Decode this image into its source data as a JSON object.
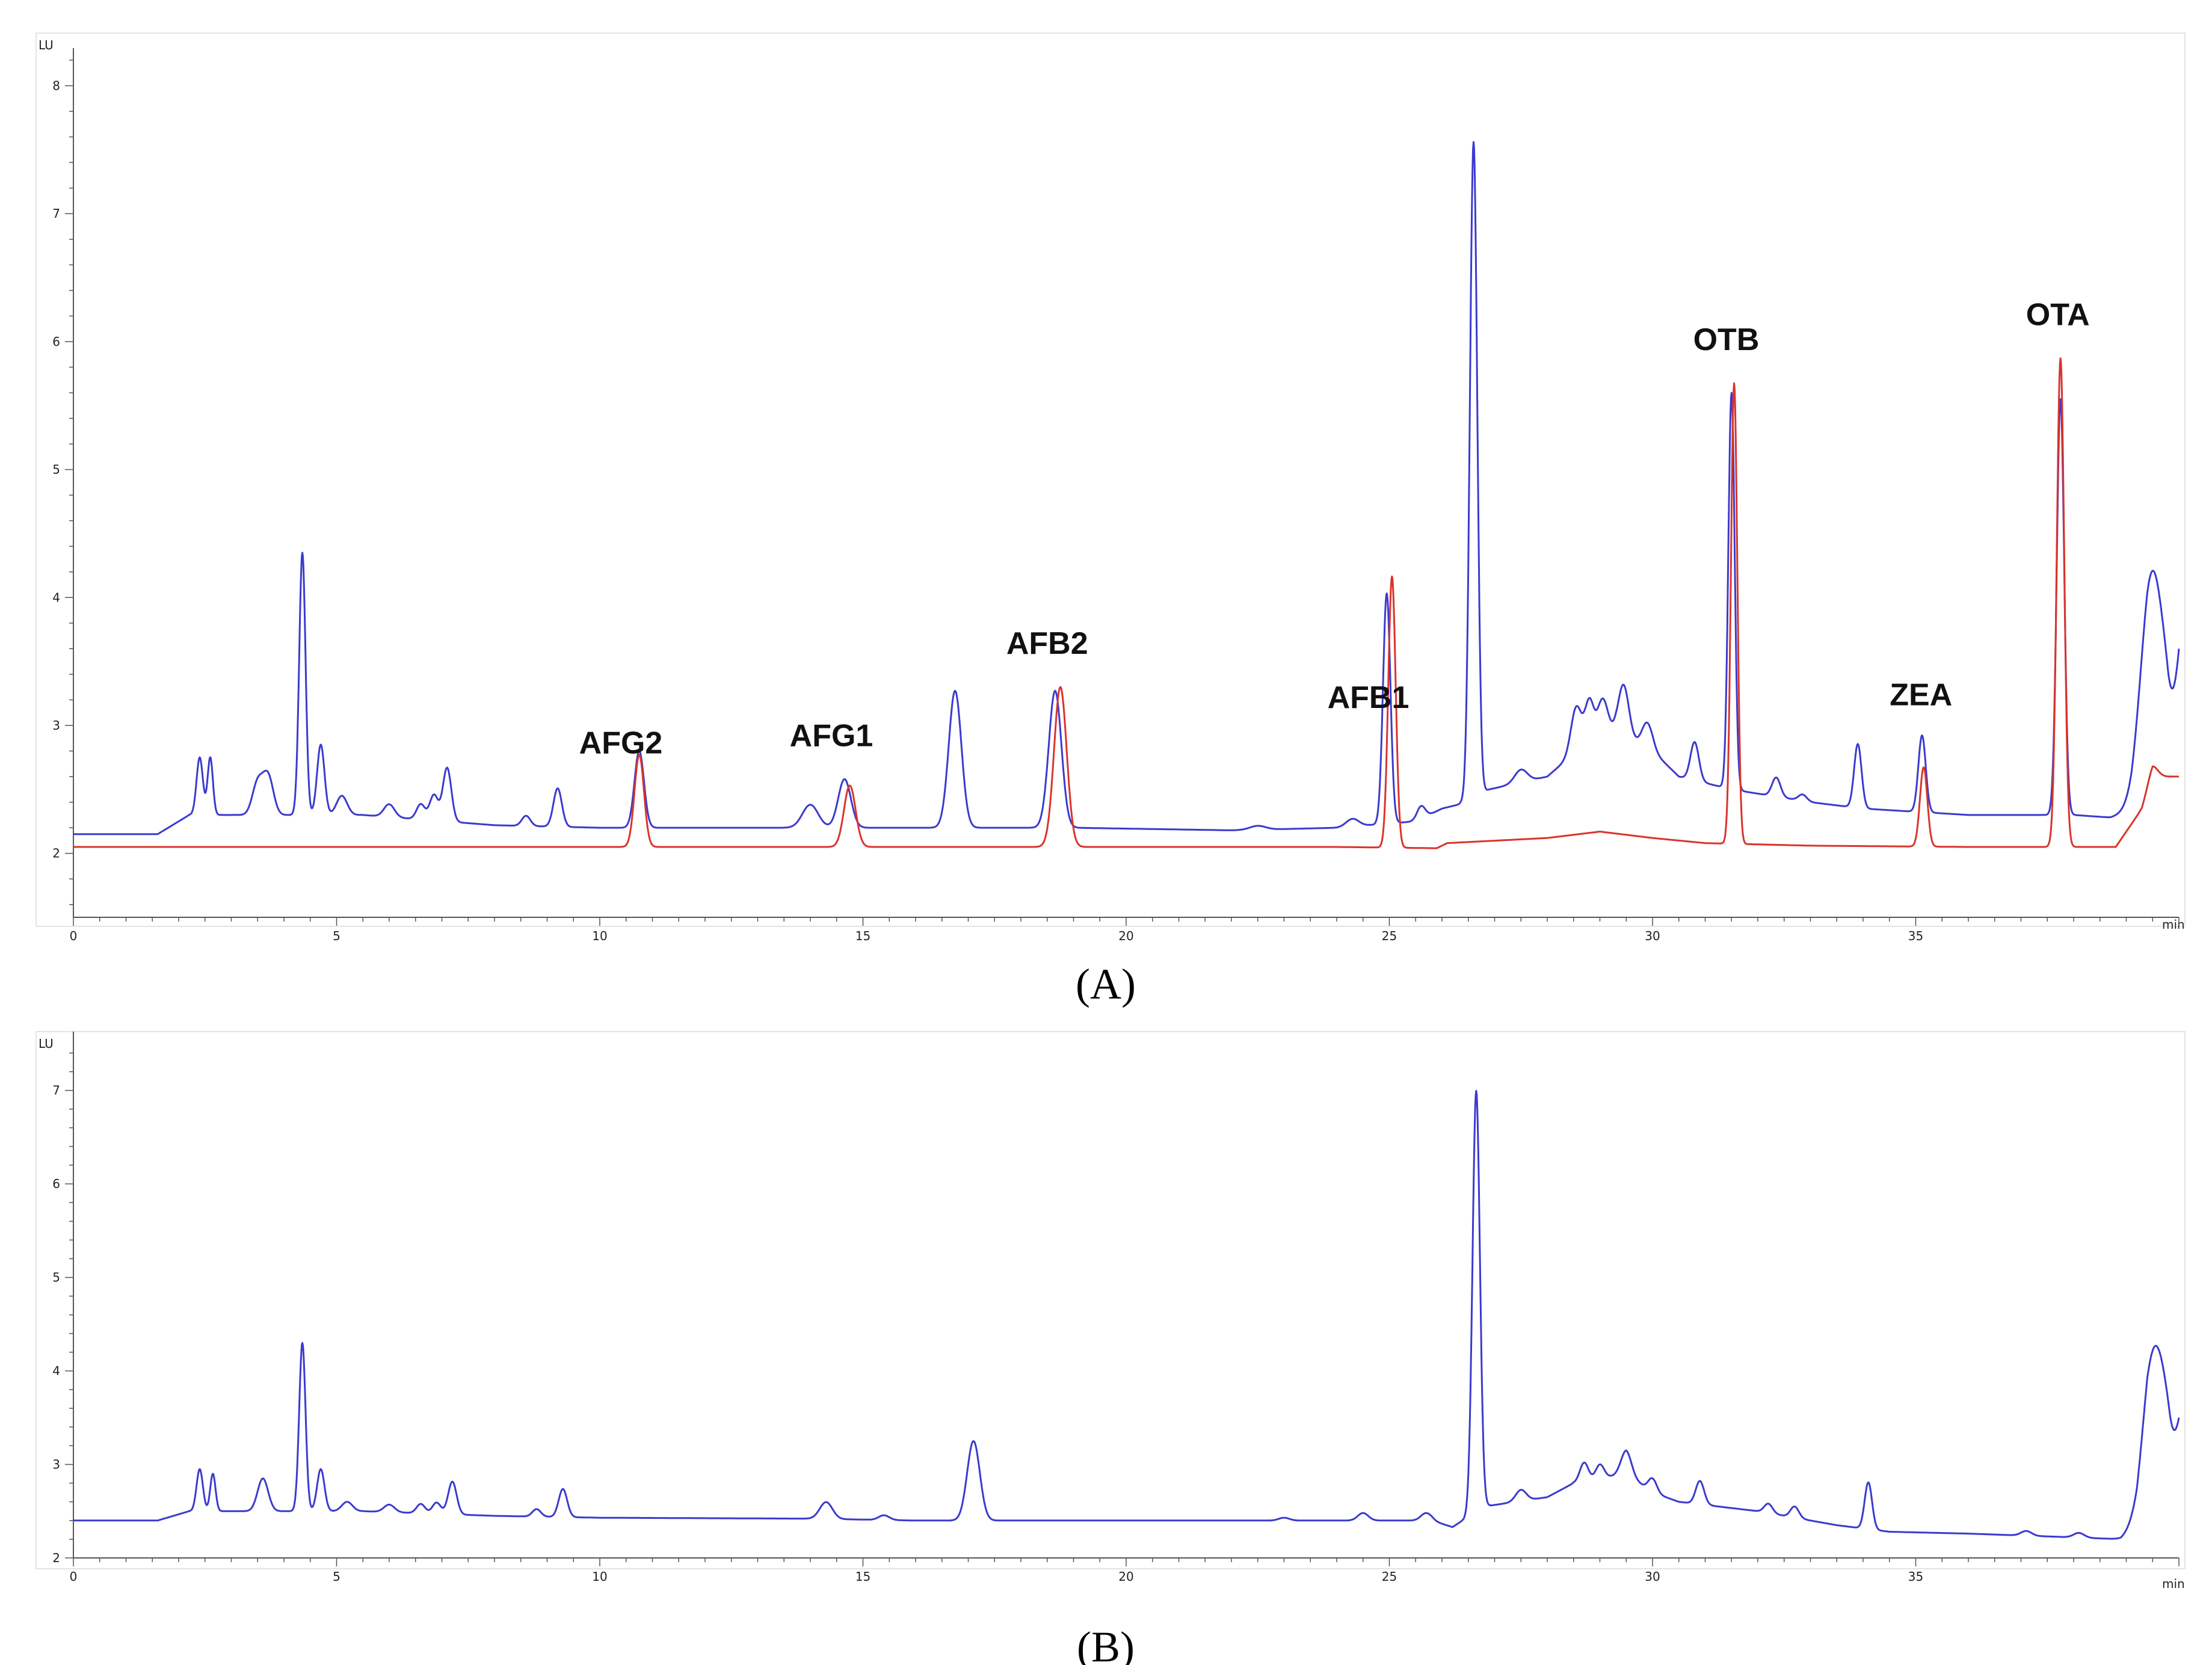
{
  "colors": {
    "sample_trace": "#3a3acf",
    "standard_trace": "#d9342b",
    "axis": "#555555",
    "panel_border": "#dddddd"
  },
  "chart_data": [
    {
      "type": "line",
      "panel_label": "(A)",
      "y_unit": "LU",
      "x_unit": "min",
      "xlim": [
        0,
        40
      ],
      "ylim": [
        1.5,
        8.2
      ],
      "x_ticks": [
        "0",
        "5",
        "10",
        "15",
        "20",
        "25",
        "30",
        "35"
      ],
      "y_ticks": [
        "2",
        "3",
        "4",
        "5",
        "6",
        "7",
        "8"
      ],
      "grid": false,
      "series": [
        {
          "color": "#3a3acf",
          "baseline": [
            [
              0,
              2.15
            ],
            [
              1.6,
              2.15
            ],
            [
              2.2,
              2.3
            ],
            [
              3.5,
              2.3
            ],
            [
              5.5,
              2.3
            ],
            [
              8,
              2.22
            ],
            [
              10,
              2.2
            ],
            [
              13,
              2.2
            ],
            [
              16,
              2.2
            ],
            [
              19,
              2.2
            ],
            [
              22,
              2.18
            ],
            [
              24,
              2.2
            ],
            [
              25.5,
              2.25
            ],
            [
              26,
              2.35
            ],
            [
              26.3,
              2.38
            ],
            [
              26.9,
              2.5
            ],
            [
              28,
              2.6
            ],
            [
              28.7,
              2.85
            ],
            [
              29.3,
              2.95
            ],
            [
              30,
              2.8
            ],
            [
              30.5,
              2.6
            ],
            [
              31.5,
              2.5
            ],
            [
              33,
              2.4
            ],
            [
              34,
              2.35
            ],
            [
              36,
              2.3
            ],
            [
              38,
              2.3
            ],
            [
              38.7,
              2.28
            ],
            [
              39.1,
              2.32
            ],
            [
              39.4,
              2.55
            ]
          ],
          "peaks": [
            [
              2.4,
              0.45,
              0.06
            ],
            [
              2.6,
              0.45,
              0.05
            ],
            [
              3.5,
              0.25,
              0.1
            ],
            [
              3.7,
              0.3,
              0.1
            ],
            [
              4.35,
              2.05,
              0.06
            ],
            [
              4.7,
              0.55,
              0.07
            ],
            [
              5.1,
              0.15,
              0.1
            ],
            [
              6,
              0.1,
              0.1
            ],
            [
              6.6,
              0.12,
              0.08
            ],
            [
              6.85,
              0.2,
              0.08
            ],
            [
              7.1,
              0.42,
              0.08
            ],
            [
              8.6,
              0.08,
              0.08
            ],
            [
              9.2,
              0.3,
              0.08
            ],
            [
              10.75,
              0.6,
              0.09
            ],
            [
              14,
              0.18,
              0.15
            ],
            [
              14.65,
              0.38,
              0.12
            ],
            [
              16.75,
              1.07,
              0.12
            ],
            [
              18.65,
              1.07,
              0.12
            ],
            [
              22.5,
              0.03,
              0.15
            ],
            [
              24.3,
              0.06,
              0.12
            ],
            [
              24.95,
              1.8,
              0.07
            ],
            [
              25.6,
              0.1,
              0.08
            ],
            [
              26.6,
              5.12,
              0.07
            ],
            [
              27.5,
              0.1,
              0.12
            ],
            [
              28.55,
              0.35,
              0.1
            ],
            [
              28.8,
              0.32,
              0.08
            ],
            [
              29.05,
              0.3,
              0.1
            ],
            [
              29.45,
              0.4,
              0.1
            ],
            [
              29.9,
              0.2,
              0.1
            ],
            [
              30.8,
              0.3,
              0.08
            ],
            [
              31.5,
              3.1,
              0.06
            ],
            [
              32.35,
              0.15,
              0.08
            ],
            [
              32.85,
              0.05,
              0.08
            ],
            [
              33.9,
              0.5,
              0.07
            ],
            [
              35.12,
              0.6,
              0.07
            ],
            [
              37.75,
              3.25,
              0.07
            ],
            [
              39.5,
              1.65,
              0.22
            ],
            [
              39.8,
              0.2,
              0.12
            ]
          ],
          "end_value": 3.6
        },
        {
          "color": "#d9342b",
          "baseline": [
            [
              0,
              2.05
            ],
            [
              10,
              2.05
            ],
            [
              16,
              2.05
            ],
            [
              20,
              2.05
            ],
            [
              24,
              2.05
            ],
            [
              25.9,
              2.04
            ],
            [
              26.1,
              2.08
            ],
            [
              28,
              2.12
            ],
            [
              29,
              2.17
            ],
            [
              30,
              2.12
            ],
            [
              31,
              2.08
            ],
            [
              33,
              2.06
            ],
            [
              36,
              2.05
            ],
            [
              38.8,
              2.05
            ],
            [
              39.3,
              2.35
            ],
            [
              39.5,
              2.6
            ],
            [
              40,
              2.6
            ]
          ],
          "peaks": [
            [
              10.75,
              0.72,
              0.09
            ],
            [
              14.75,
              0.48,
              0.11
            ],
            [
              18.75,
              1.25,
              0.12
            ],
            [
              25.05,
              2.12,
              0.07
            ],
            [
              31.55,
              3.6,
              0.06
            ],
            [
              35.15,
              0.62,
              0.07
            ],
            [
              37.75,
              3.82,
              0.07
            ],
            [
              39.5,
              0.08,
              0.1
            ]
          ]
        }
      ],
      "annotations": [
        {
          "label": "AFG2",
          "x": 10.4
        },
        {
          "label": "AFG1",
          "x": 14.4
        },
        {
          "label": "AFB2",
          "x": 18.5
        },
        {
          "label": "AFB1",
          "x": 24.6
        },
        {
          "label": "OTB",
          "x": 31.4
        },
        {
          "label": "ZEA",
          "x": 35.1
        },
        {
          "label": "OTA",
          "x": 37.7
        }
      ]
    },
    {
      "type": "line",
      "panel_label": "(B)",
      "y_unit": "LU",
      "x_unit": "min",
      "xlim": [
        0,
        40
      ],
      "ylim": [
        2,
        7.5
      ],
      "x_ticks": [
        "0",
        "5",
        "10",
        "15",
        "20",
        "25",
        "30",
        "35"
      ],
      "y_ticks": [
        "2",
        "3",
        "4",
        "5",
        "6",
        "7"
      ],
      "grid": false,
      "series": [
        {
          "color": "#3a3acf",
          "baseline": [
            [
              0,
              2.4
            ],
            [
              1.6,
              2.4
            ],
            [
              2.2,
              2.5
            ],
            [
              5.5,
              2.5
            ],
            [
              8,
              2.45
            ],
            [
              10,
              2.43
            ],
            [
              14,
              2.42
            ],
            [
              16,
              2.4
            ],
            [
              20,
              2.4
            ],
            [
              24,
              2.4
            ],
            [
              25.8,
              2.4
            ],
            [
              26.2,
              2.33
            ],
            [
              26.8,
              2.55
            ],
            [
              28,
              2.65
            ],
            [
              28.5,
              2.8
            ],
            [
              29.5,
              2.9
            ],
            [
              30,
              2.7
            ],
            [
              30.5,
              2.6
            ],
            [
              32,
              2.5
            ],
            [
              33.5,
              2.35
            ],
            [
              34.5,
              2.28
            ],
            [
              36,
              2.26
            ],
            [
              38,
              2.22
            ],
            [
              38.9,
              2.2
            ],
            [
              39.2,
              2.3
            ],
            [
              39.4,
              2.7
            ]
          ],
          "peaks": [
            [
              2.4,
              0.45,
              0.06
            ],
            [
              2.65,
              0.4,
              0.05
            ],
            [
              3.6,
              0.35,
              0.1
            ],
            [
              4.35,
              1.8,
              0.06
            ],
            [
              4.7,
              0.45,
              0.07
            ],
            [
              5.2,
              0.1,
              0.1
            ],
            [
              6,
              0.08,
              0.1
            ],
            [
              6.6,
              0.1,
              0.08
            ],
            [
              6.9,
              0.12,
              0.08
            ],
            [
              7.2,
              0.35,
              0.08
            ],
            [
              8.8,
              0.08,
              0.08
            ],
            [
              9.3,
              0.3,
              0.08
            ],
            [
              14.3,
              0.18,
              0.12
            ],
            [
              15.4,
              0.05,
              0.1
            ],
            [
              17.1,
              0.85,
              0.12
            ],
            [
              23,
              0.03,
              0.1
            ],
            [
              24.5,
              0.08,
              0.1
            ],
            [
              25.7,
              0.08,
              0.1
            ],
            [
              26.65,
              4.5,
              0.07
            ],
            [
              27.5,
              0.12,
              0.1
            ],
            [
              28.7,
              0.2,
              0.08
            ],
            [
              29,
              0.15,
              0.08
            ],
            [
              29.5,
              0.25,
              0.1
            ],
            [
              30,
              0.15,
              0.08
            ],
            [
              30.9,
              0.25,
              0.08
            ],
            [
              32.2,
              0.1,
              0.08
            ],
            [
              32.7,
              0.12,
              0.08
            ],
            [
              34.1,
              0.5,
              0.07
            ],
            [
              37.1,
              0.05,
              0.1
            ],
            [
              38.1,
              0.05,
              0.1
            ],
            [
              39.55,
              1.55,
              0.22
            ],
            [
              39.8,
              0.15,
              0.12
            ]
          ],
          "end_value": 3.5
        }
      ],
      "annotations": []
    }
  ]
}
